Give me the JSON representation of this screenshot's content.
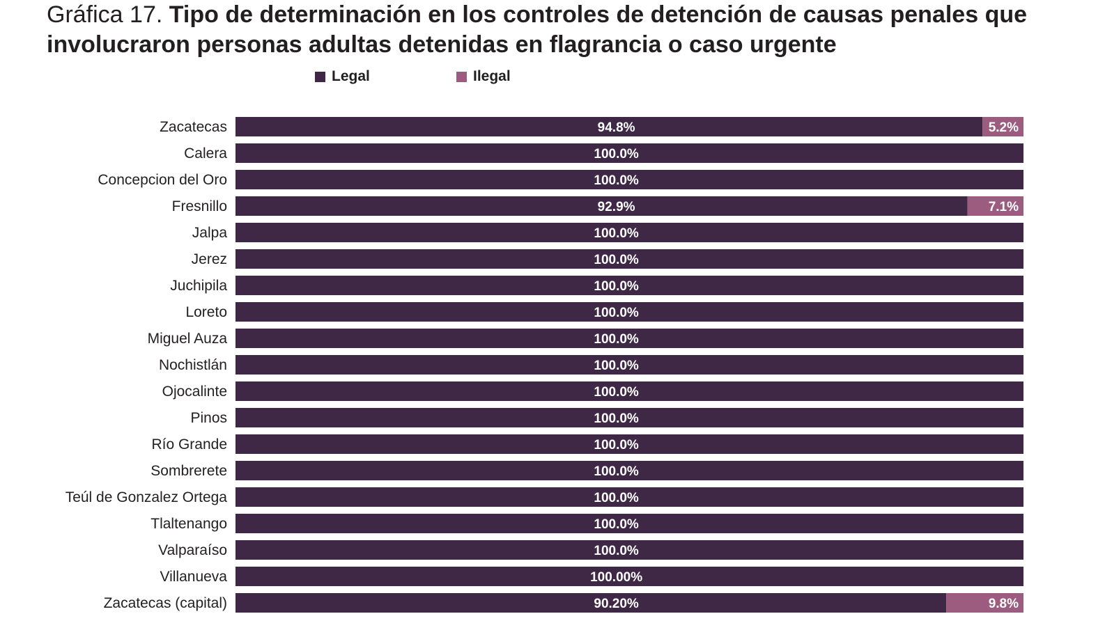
{
  "title": {
    "prefix": "Gráfica 17.",
    "main": "Tipo de determinación en los controles de detención de causas penales que involucraron personas adultas detenidas en flagrancia o caso urgente"
  },
  "legend": [
    {
      "label": "Legal",
      "color": "#3e2846"
    },
    {
      "label": "Ilegal",
      "color": "#9b5c80"
    }
  ],
  "chart_data": {
    "type": "bar",
    "orientation": "horizontal",
    "stacked": true,
    "xlim": [
      0,
      100
    ],
    "grid": false,
    "legend_position": "top",
    "categories": [
      "Zacatecas",
      "Calera",
      "Concepcion del Oro",
      "Fresnillo",
      "Jalpa",
      "Jerez",
      "Juchipila",
      "Loreto",
      "Miguel Auza",
      "Nochistlán",
      "Ojocalinte",
      "Pinos",
      "Río Grande",
      "Sombrerete",
      "Teúl de Gonzalez Ortega",
      "Tlaltenango",
      "Valparaíso",
      "Villanueva",
      "Zacatecas (capital)"
    ],
    "series": [
      {
        "name": "Legal",
        "color": "#3e2846",
        "values": [
          94.8,
          100,
          100,
          92.9,
          100,
          100,
          100,
          100,
          100,
          100,
          100,
          100,
          100,
          100,
          100,
          100,
          100,
          100,
          90.2
        ],
        "labels": [
          "94.8%",
          "100.0%",
          "100.0%",
          "92.9%",
          "100.0%",
          "100.0%",
          "100.0%",
          "100.0%",
          "100.0%",
          "100.0%",
          "100.0%",
          "100.0%",
          "100.0%",
          "100.0%",
          "100.0%",
          "100.0%",
          "100.0%",
          "100.00%",
          "90.20%"
        ]
      },
      {
        "name": "Ilegal",
        "color": "#9b5c80",
        "values": [
          5.2,
          0,
          0,
          7.1,
          0,
          0,
          0,
          0,
          0,
          0,
          0,
          0,
          0,
          0,
          0,
          0,
          0,
          0,
          9.8
        ],
        "labels": [
          "5.2%",
          "",
          "",
          "7.1%",
          "",
          "",
          "",
          "",
          "",
          "",
          "",
          "",
          "",
          "",
          "",
          "",
          "",
          "",
          "9.8%"
        ]
      }
    ]
  }
}
